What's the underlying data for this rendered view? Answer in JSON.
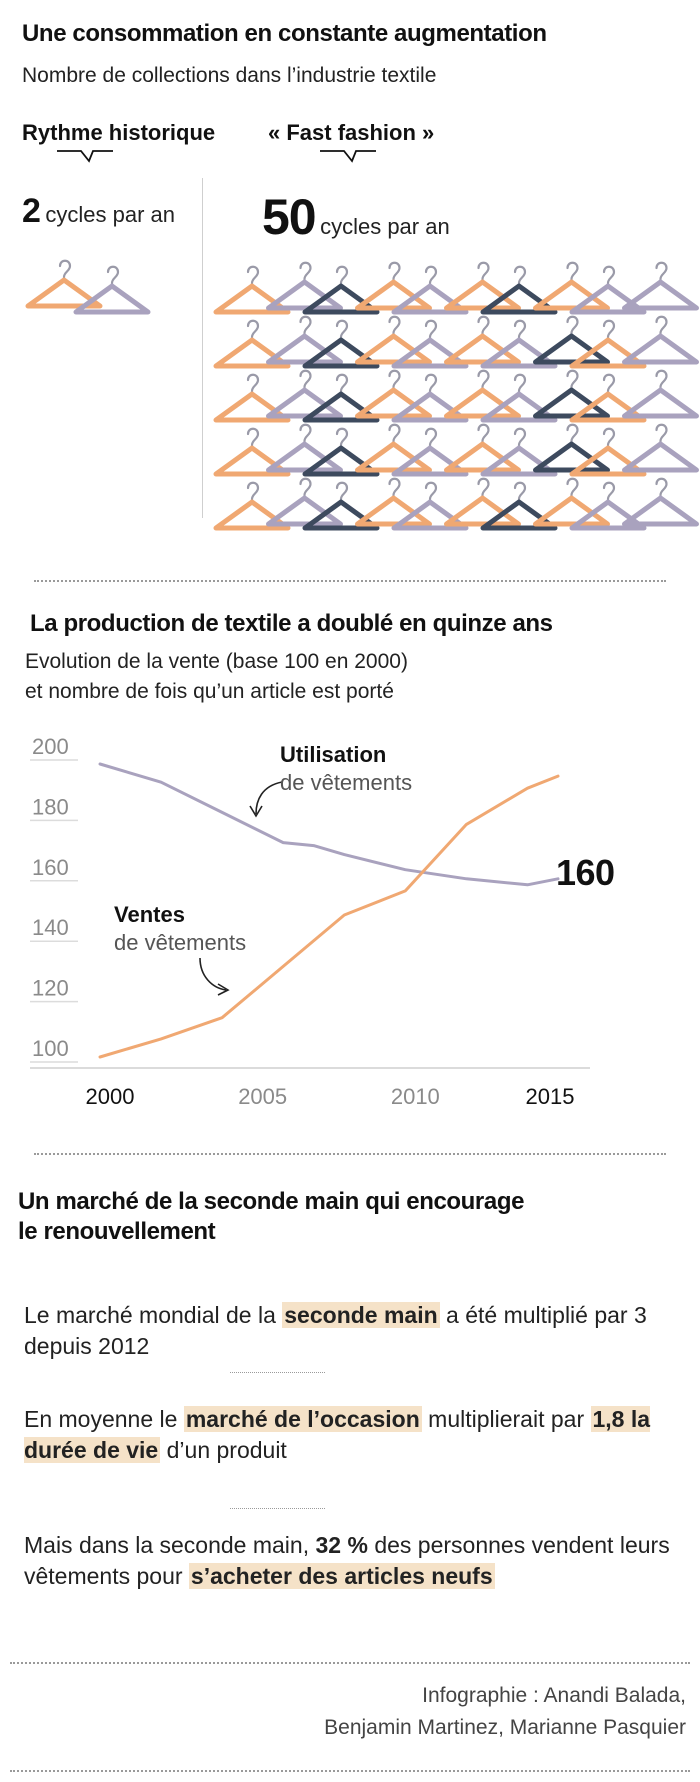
{
  "section1": {
    "title": "Une consommation en constante augmentation",
    "subtitle": "Nombre de collections dans l’industrie textile",
    "historic": {
      "label": "Rythme historique",
      "number": "2",
      "unit": "cycles par an",
      "hanger_count": 2
    },
    "fast": {
      "label": "« Fast fashion »",
      "number": "50",
      "unit": "cycles par an",
      "hanger_count": 50
    },
    "hanger_colors": {
      "orange": "#f0a872",
      "lavender": "#a9a2be",
      "dark": "#3d4a5e"
    }
  },
  "section2": {
    "title": "La production de textile a doublé en quinze ans",
    "subtitle_line1": "Evolution de la vente (base 100 en 2000)",
    "subtitle_line2": "et nombre de fois qu’un article est porté",
    "annotation_usage_title": "Utilisation",
    "annotation_usage_sub": "de vêtements",
    "annotation_sales_title": "Ventes",
    "annotation_sales_sub": "de vêtements",
    "end_value_label": "160"
  },
  "chart_data": {
    "type": "line",
    "title": "La production de textile a doublé en quinze ans",
    "xlabel": "",
    "ylabel": "",
    "xlim": [
      2000,
      2015
    ],
    "ylim": [
      100,
      200
    ],
    "x_ticks": [
      "2000",
      "2005",
      "2010",
      "2015"
    ],
    "y_ticks": [
      "100",
      "120",
      "140",
      "160",
      "180",
      "200"
    ],
    "series": [
      {
        "name": "Utilisation de vêtements",
        "color": "#a9a2be",
        "x": [
          2000,
          2002,
          2004,
          2006,
          2007,
          2008,
          2010,
          2012,
          2014,
          2015
        ],
        "values": [
          198,
          192,
          182,
          172,
          171,
          168,
          163,
          160,
          158,
          160
        ]
      },
      {
        "name": "Ventes de vêtements",
        "color": "#f0a872",
        "x": [
          2000,
          2002,
          2004,
          2006,
          2008,
          2010,
          2012,
          2014,
          2015
        ],
        "values": [
          101,
          107,
          114,
          131,
          148,
          156,
          178,
          190,
          194
        ]
      }
    ]
  },
  "section3": {
    "title_line1": "Un marché de la seconde main qui encourage",
    "title_line2": "le renouvellement",
    "p1": {
      "a": "Le marché mondial de la ",
      "hl": "seconde main",
      "b": " a été multiplié par 3 depuis 2012"
    },
    "p2": {
      "a": "En moyenne le ",
      "hl1": "marché de l’occasion",
      "b": " multiplierait par ",
      "hl2": "1,8 la durée de vie",
      "c": " d’un produit"
    },
    "p3": {
      "a": "Mais dans la seconde main, ",
      "bold": "32 %",
      "b": " des personnes vendent leurs vêtements pour ",
      "hl": "s’acheter des articles neufs"
    }
  },
  "credits": {
    "line1": "Infographie : Anandi Balada,",
    "line2": "Benjamin Martinez, Marianne Pasquier"
  }
}
